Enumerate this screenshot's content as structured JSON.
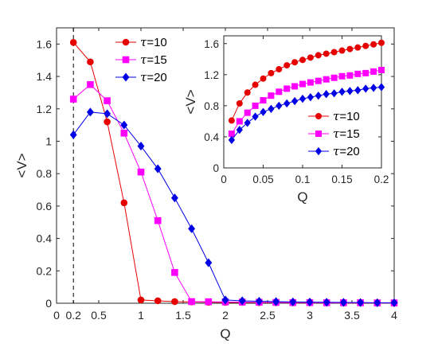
{
  "chart_data": [
    {
      "type": "line",
      "xlabel": "Q",
      "ylabel": "<V>",
      "xlim": [
        0,
        4
      ],
      "ylim": [
        0,
        1.7
      ],
      "xticks": [
        "0",
        "0.2",
        "0.5",
        "1",
        "1.5",
        "2",
        "2.5",
        "3",
        "3.5",
        "4"
      ],
      "yticks": [
        "0",
        "0.2",
        "0.4",
        "0.6",
        "0.8",
        "1",
        "1.2",
        "1.4",
        "1.6"
      ],
      "vline_x": 0.2,
      "grid": false,
      "legend_position": "top-left",
      "series": [
        {
          "name": "τ=10",
          "tau_label": "τ",
          "value_label": "=10",
          "color": "#e60000",
          "marker": "circle",
          "x": [
            0.2,
            0.4,
            0.6,
            0.8,
            1.0,
            1.2,
            1.4,
            1.6,
            1.8,
            2.0,
            2.2,
            2.4,
            2.6,
            2.8,
            3.0,
            3.2,
            3.4,
            3.6,
            3.8,
            4.0
          ],
          "y": [
            1.61,
            1.49,
            1.12,
            0.62,
            0.02,
            0.015,
            0.01,
            0.008,
            0.006,
            0.005,
            0.005,
            0.004,
            0.004,
            0.003,
            0.003,
            0.003,
            0.002,
            0.002,
            0.002,
            0.002
          ]
        },
        {
          "name": "τ=15",
          "tau_label": "τ",
          "value_label": "=15",
          "color": "#ff00ff",
          "marker": "square",
          "x": [
            0.2,
            0.4,
            0.6,
            0.8,
            1.0,
            1.2,
            1.4,
            1.6,
            1.8,
            2.0,
            2.2,
            2.4,
            2.6,
            2.8,
            3.0,
            3.2,
            3.4,
            3.6,
            3.8,
            4.0
          ],
          "y": [
            1.26,
            1.35,
            1.25,
            1.05,
            0.81,
            0.51,
            0.19,
            0.01,
            0.009,
            0.008,
            0.007,
            0.006,
            0.005,
            0.004,
            0.004,
            0.003,
            0.003,
            0.003,
            0.002,
            0.002
          ]
        },
        {
          "name": "τ=20",
          "tau_label": "τ",
          "value_label": "=20",
          "color": "#0000e6",
          "marker": "diamond",
          "x": [
            0.2,
            0.4,
            0.6,
            0.8,
            1.0,
            1.2,
            1.4,
            1.6,
            1.8,
            2.0,
            2.2,
            2.4,
            2.6,
            2.8,
            3.0,
            3.2,
            3.4,
            3.6,
            3.8,
            4.0
          ],
          "y": [
            1.04,
            1.18,
            1.17,
            1.1,
            0.97,
            0.83,
            0.65,
            0.46,
            0.25,
            0.02,
            0.015,
            0.012,
            0.01,
            0.008,
            0.007,
            0.006,
            0.005,
            0.004,
            0.003,
            0.003
          ]
        }
      ]
    },
    {
      "type": "line",
      "xlabel": "Q",
      "ylabel": "<V>",
      "xlim": [
        0,
        0.2
      ],
      "ylim": [
        0,
        1.7
      ],
      "xticks": [
        "0",
        "0.05",
        "0.1",
        "0.15",
        "0.2"
      ],
      "yticks": [
        "0",
        "0.4",
        "0.8",
        "1.2",
        "1.6"
      ],
      "grid": false,
      "legend_position": "bottom-right",
      "series": [
        {
          "name": "τ=10",
          "tau_label": "τ",
          "value_label": "=10",
          "color": "#e60000",
          "marker": "circle",
          "x": [
            0.01,
            0.02,
            0.03,
            0.04,
            0.05,
            0.06,
            0.07,
            0.08,
            0.09,
            0.1,
            0.11,
            0.12,
            0.13,
            0.14,
            0.15,
            0.16,
            0.17,
            0.18,
            0.19,
            0.2
          ],
          "y": [
            0.61,
            0.83,
            0.97,
            1.07,
            1.15,
            1.22,
            1.27,
            1.32,
            1.36,
            1.39,
            1.42,
            1.45,
            1.47,
            1.49,
            1.51,
            1.53,
            1.55,
            1.57,
            1.59,
            1.61
          ]
        },
        {
          "name": "τ=15",
          "tau_label": "τ",
          "value_label": "=15",
          "color": "#ff00ff",
          "marker": "square",
          "x": [
            0.01,
            0.02,
            0.03,
            0.04,
            0.05,
            0.06,
            0.07,
            0.08,
            0.09,
            0.1,
            0.11,
            0.12,
            0.13,
            0.14,
            0.15,
            0.16,
            0.17,
            0.18,
            0.19,
            0.2
          ],
          "y": [
            0.44,
            0.6,
            0.71,
            0.8,
            0.87,
            0.93,
            0.98,
            1.02,
            1.05,
            1.08,
            1.1,
            1.12,
            1.14,
            1.16,
            1.18,
            1.19,
            1.21,
            1.22,
            1.24,
            1.26
          ]
        },
        {
          "name": "τ=20",
          "tau_label": "τ",
          "value_label": "=20",
          "color": "#0000e6",
          "marker": "diamond",
          "x": [
            0.01,
            0.02,
            0.03,
            0.04,
            0.05,
            0.06,
            0.07,
            0.08,
            0.09,
            0.1,
            0.11,
            0.12,
            0.13,
            0.14,
            0.15,
            0.16,
            0.17,
            0.18,
            0.19,
            0.2
          ],
          "y": [
            0.36,
            0.49,
            0.58,
            0.66,
            0.72,
            0.76,
            0.8,
            0.83,
            0.86,
            0.89,
            0.91,
            0.93,
            0.95,
            0.96,
            0.98,
            0.99,
            1.0,
            1.02,
            1.03,
            1.04
          ]
        }
      ]
    }
  ]
}
